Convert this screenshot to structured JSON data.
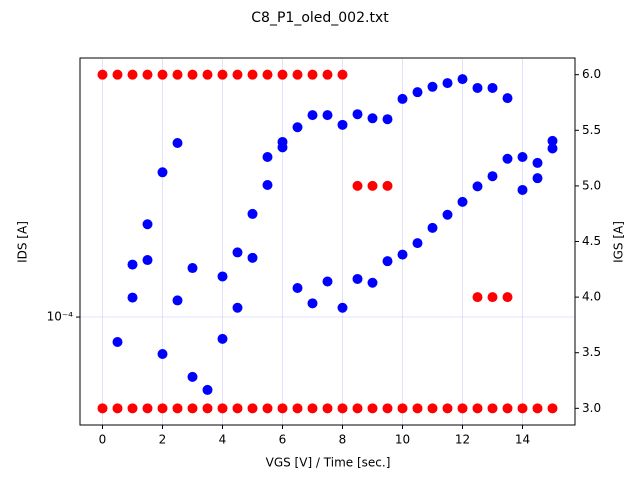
{
  "chart_data": {
    "type": "scatter",
    "title": "C8_P1_oled_002.txt",
    "x_label": "VGS [V] / Time [sec.]",
    "y_label": "IDS [A]",
    "y2_label": "IGS [A]",
    "xlim": [
      -0.75,
      15.75
    ],
    "xticks": [
      0,
      2,
      4,
      6,
      8,
      10,
      12,
      14
    ],
    "ylim": [
      5.08e-05,
      0.000508
    ],
    "yscale": "log",
    "yticks": [
      {
        "value": 0.0001,
        "label": "10⁻⁴"
      }
    ],
    "y2lim": [
      2.85,
      6.15
    ],
    "y2ticks": [
      {
        "value": 3,
        "label": "3.0"
      },
      {
        "value": 3.5,
        "label": "3.5"
      },
      {
        "value": 4,
        "label": "4.0"
      },
      {
        "value": 4.5,
        "label": "4.5"
      },
      {
        "value": 5,
        "label": "5.0"
      },
      {
        "value": 5.5,
        "label": "5.5"
      },
      {
        "value": 6,
        "label": "6.0"
      }
    ],
    "grid": true,
    "x_label_color": "#0000ff",
    "y_label_color": "#0000ff",
    "y2_label_color": "#ff0000",
    "series": [
      {
        "color": "#0000ff",
        "axis": "y",
        "x": [
          0.5,
          1,
          1,
          1.5,
          1.5,
          2,
          2,
          2.5,
          2.5,
          3,
          3,
          3.5,
          4,
          4,
          4.5,
          4.5,
          5,
          5,
          5.5,
          5.5,
          6,
          6,
          6.5,
          6.5,
          7,
          7,
          7.5,
          7.5,
          8,
          8,
          8.5,
          8.5,
          9,
          9,
          9.5,
          9.5,
          10,
          10,
          10.5,
          10.5,
          11,
          11,
          11.5,
          11.5,
          12,
          12,
          12.5,
          12.5,
          13,
          13,
          13.5,
          13.5,
          14,
          14,
          14.5,
          14.5,
          15,
          15
        ],
        "values": [
          8.55e-05,
          0.000139,
          0.000113,
          0.000179,
          0.000143,
          0.000248,
          7.93e-05,
          0.000298,
          0.000111,
          0.000136,
          6.87e-05,
          6.33e-05,
          0.000129,
          8.72e-05,
          0.00015,
          0.000106,
          0.000191,
          0.000145,
          0.000273,
          0.000229,
          0.0003,
          0.00029,
          0.000329,
          0.00012,
          0.000355,
          0.000109,
          0.000355,
          0.000125,
          0.000334,
          0.000106,
          0.000357,
          0.000127,
          0.000348,
          0.000124,
          0.000346,
          0.000142,
          0.000393,
          0.000148,
          0.00041,
          0.000159,
          0.000424,
          0.000175,
          0.000434,
          0.00019,
          0.000445,
          0.000206,
          0.000421,
          0.000227,
          0.000421,
          0.000242,
          0.000395,
          0.00027,
          0.000273,
          0.000222,
          0.000263,
          0.000239,
          0.000302,
          0.000288
        ]
      },
      {
        "color": "#ff0000",
        "axis": "y2",
        "x": [
          0,
          0.5,
          1,
          1.5,
          2,
          2.5,
          3,
          3.5,
          4,
          4.5,
          5,
          5.5,
          6,
          6.5,
          7,
          7.5,
          8,
          8.5,
          9,
          9.5,
          12.5,
          13,
          13.5,
          0,
          0.5,
          1,
          1.5,
          2,
          2.5,
          3,
          3.5,
          4,
          4.5,
          5,
          5.5,
          6,
          6.5,
          7,
          7.5,
          8,
          8.5,
          9,
          9.5,
          10,
          10.5,
          11,
          11.5,
          12,
          12.5,
          13,
          13.5,
          14,
          14.5,
          15
        ],
        "values": [
          6,
          6,
          6,
          6,
          6,
          6,
          6,
          6,
          6,
          6,
          6,
          6,
          6,
          6,
          6,
          6,
          6,
          5,
          5,
          5,
          4,
          4,
          4,
          3,
          3,
          3,
          3,
          3,
          3,
          3,
          3,
          3,
          3,
          3,
          3,
          3,
          3,
          3,
          3,
          3,
          3,
          3,
          3,
          3,
          3,
          3,
          3,
          3,
          3,
          3,
          3,
          3,
          3,
          3
        ]
      }
    ]
  }
}
